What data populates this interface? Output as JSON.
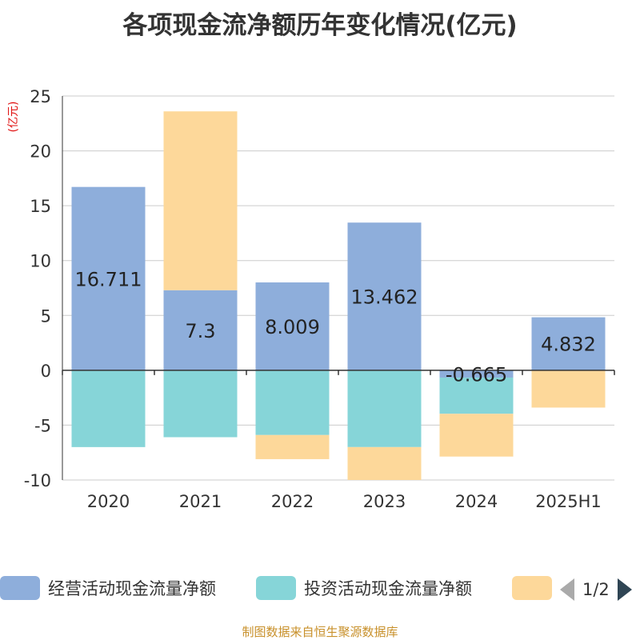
{
  "title": "各项现金流净额历年变化情况(亿元)",
  "footer": "制图数据来自恒生聚源数据库",
  "legend": {
    "items": [
      {
        "label": "经营活动现金流量净额",
        "color": "#8eaedb"
      },
      {
        "label": "投资活动现金流量净额",
        "color": "#86d5d8"
      },
      {
        "label": "",
        "color": "#fdd89a"
      }
    ],
    "page": "1/2"
  },
  "chart_data": {
    "type": "bar",
    "stacked": true,
    "ylabel": "(亿元)",
    "ylim": [
      -10,
      25
    ],
    "yticks": [
      25,
      20,
      15,
      10,
      5,
      0,
      -5,
      -10
    ],
    "grid": true,
    "legend_position": "bottom",
    "categories": [
      "2020",
      "2021",
      "2022",
      "2023",
      "2024",
      "2025H1"
    ],
    "series": [
      {
        "name": "经营活动现金流量净额",
        "color": "#8eaedb",
        "values": [
          16.711,
          7.3,
          8.009,
          13.462,
          -0.665,
          4.832
        ],
        "labels": [
          "16.711",
          "7.3",
          "8.009",
          "13.462",
          "-0.665",
          "4.832"
        ]
      },
      {
        "name": "投资活动现金流量净额",
        "color": "#86d5d8",
        "values": [
          -7.0,
          -6.1,
          -5.9,
          -7.0,
          -3.3,
          0
        ]
      },
      {
        "name": "",
        "color": "#fdd89a",
        "values": [
          0,
          16.3,
          -2.2,
          -3.0,
          -3.9,
          -3.4
        ]
      }
    ]
  }
}
